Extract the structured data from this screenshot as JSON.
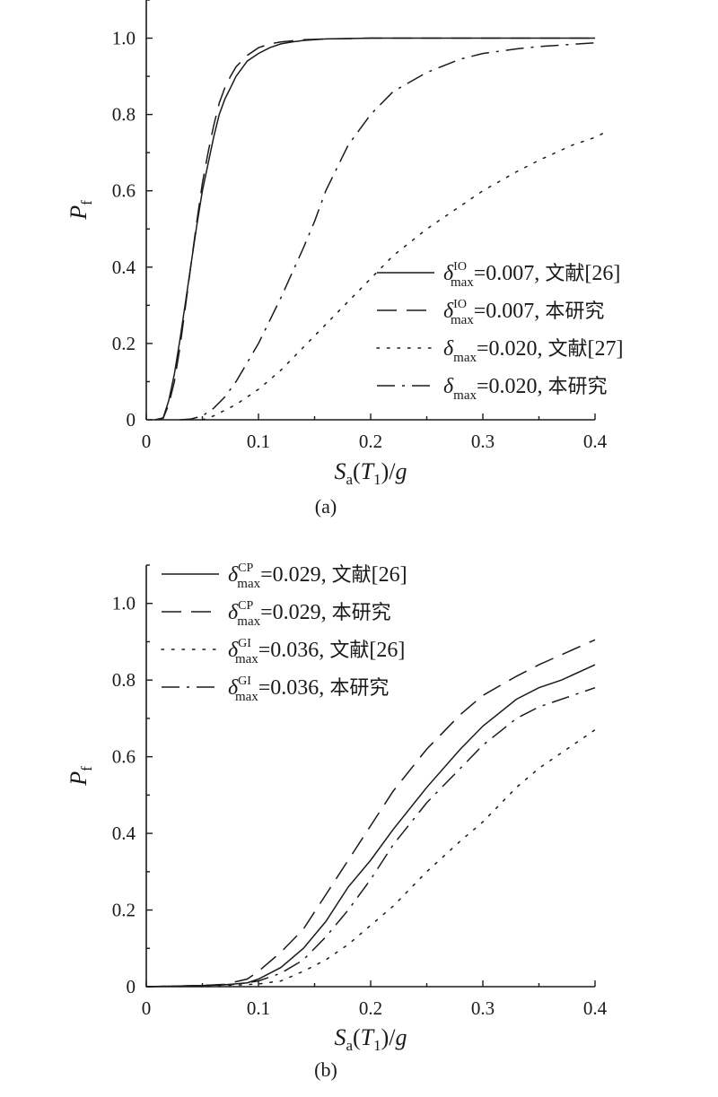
{
  "chart_data": [
    {
      "panel_label": "(a)",
      "type": "line",
      "xlabel": {
        "main": "S",
        "sub": "a",
        "paren_open": "(",
        "var": "T",
        "var_sub": "1",
        "rest": ")/",
        "tail": "g"
      },
      "ylabel": {
        "main": "P",
        "sub": "f"
      },
      "xlim": [
        0,
        0.4
      ],
      "ylim": [
        0,
        1.1
      ],
      "xticks": [
        "0",
        "0.1",
        "0.2",
        "0.3",
        "0.4"
      ],
      "yticks": [
        "0",
        "0.2",
        "0.4",
        "0.6",
        "0.8",
        "1.0"
      ],
      "legend_position": "lower-right",
      "series": [
        {
          "legend": {
            "sym": "δ",
            "sub": "max",
            "sup": "IO",
            "rest": "=0.007, ",
            "cjk": "文献",
            "ref": "[26]"
          },
          "style": "solid",
          "x": [
            0.008,
            0.015,
            0.02,
            0.025,
            0.03,
            0.035,
            0.04,
            0.045,
            0.05,
            0.055,
            0.06,
            0.065,
            0.07,
            0.075,
            0.08,
            0.09,
            0.1,
            0.11,
            0.12,
            0.13,
            0.14,
            0.15,
            0.16,
            0.18,
            0.2,
            0.25,
            0.3,
            0.35,
            0.4
          ],
          "y": [
            0.0,
            0.005,
            0.05,
            0.12,
            0.21,
            0.31,
            0.41,
            0.51,
            0.6,
            0.67,
            0.74,
            0.8,
            0.84,
            0.87,
            0.9,
            0.94,
            0.96,
            0.975,
            0.985,
            0.99,
            0.994,
            0.996,
            0.998,
            0.999,
            1.0,
            1.0,
            1.0,
            1.0,
            1.0
          ]
        },
        {
          "legend": {
            "sym": "δ",
            "sub": "max",
            "sup": "IO",
            "rest": "=0.007, ",
            "cjk": "本研究",
            "ref": ""
          },
          "style": "dashed",
          "x": [
            0.008,
            0.015,
            0.02,
            0.025,
            0.03,
            0.035,
            0.04,
            0.045,
            0.05,
            0.055,
            0.06,
            0.065,
            0.07,
            0.075,
            0.08,
            0.09,
            0.1,
            0.11,
            0.12,
            0.14,
            0.16,
            0.18,
            0.2,
            0.25,
            0.3,
            0.35,
            0.4
          ],
          "y": [
            0.0,
            0.004,
            0.04,
            0.1,
            0.19,
            0.3,
            0.41,
            0.52,
            0.62,
            0.7,
            0.77,
            0.83,
            0.87,
            0.9,
            0.925,
            0.955,
            0.975,
            0.985,
            0.99,
            0.996,
            0.998,
            0.999,
            1.0,
            1.0,
            1.0,
            1.0,
            1.0
          ]
        },
        {
          "legend": {
            "sym": "δ",
            "sub": "max",
            "sup": "",
            "rest": "=0.020, ",
            "cjk": "文献",
            "ref": "[27]"
          },
          "style": "dotted",
          "x": [
            0.05,
            0.06,
            0.08,
            0.1,
            0.12,
            0.15,
            0.18,
            0.2,
            0.22,
            0.25,
            0.28,
            0.3,
            0.33,
            0.35,
            0.38,
            0.4,
            0.41
          ],
          "y": [
            0.0,
            0.01,
            0.04,
            0.08,
            0.13,
            0.22,
            0.31,
            0.37,
            0.43,
            0.5,
            0.56,
            0.6,
            0.65,
            0.68,
            0.72,
            0.74,
            0.755
          ]
        },
        {
          "legend": {
            "sym": "δ",
            "sub": "max",
            "sup": "",
            "rest": "=0.020, ",
            "cjk": "本研究",
            "ref": ""
          },
          "style": "dashdot",
          "x": [
            0.03,
            0.04,
            0.05,
            0.06,
            0.07,
            0.08,
            0.1,
            0.12,
            0.14,
            0.15,
            0.16,
            0.18,
            0.2,
            0.22,
            0.25,
            0.28,
            0.3,
            0.33,
            0.35,
            0.38,
            0.4
          ],
          "y": [
            0.0,
            0.002,
            0.01,
            0.03,
            0.06,
            0.1,
            0.2,
            0.32,
            0.45,
            0.52,
            0.6,
            0.72,
            0.8,
            0.86,
            0.91,
            0.945,
            0.96,
            0.972,
            0.978,
            0.984,
            0.988
          ]
        }
      ]
    },
    {
      "panel_label": "(b)",
      "type": "line",
      "xlabel": {
        "main": "S",
        "sub": "a",
        "paren_open": "(",
        "var": "T",
        "var_sub": "1",
        "rest": ")/",
        "tail": "g"
      },
      "ylabel": {
        "main": "P",
        "sub": "f"
      },
      "xlim": [
        0,
        0.4
      ],
      "ylim": [
        0,
        1.1
      ],
      "xticks": [
        "0",
        "0.1",
        "0.2",
        "0.3",
        "0.4"
      ],
      "yticks": [
        "0",
        "0.2",
        "0.4",
        "0.6",
        "0.8",
        "1.0"
      ],
      "legend_position": "upper-left",
      "series": [
        {
          "legend": {
            "sym": "δ",
            "sub": "max",
            "sup": "CP",
            "rest": "=0.029, ",
            "cjk": "文献",
            "ref": "[26]"
          },
          "style": "solid",
          "x": [
            0.0,
            0.05,
            0.07,
            0.09,
            0.1,
            0.12,
            0.14,
            0.16,
            0.18,
            0.2,
            0.22,
            0.25,
            0.28,
            0.3,
            0.33,
            0.35,
            0.37,
            0.4
          ],
          "y": [
            0.0,
            0.003,
            0.005,
            0.01,
            0.02,
            0.05,
            0.1,
            0.17,
            0.26,
            0.33,
            0.41,
            0.52,
            0.62,
            0.68,
            0.75,
            0.78,
            0.8,
            0.84
          ]
        },
        {
          "legend": {
            "sym": "δ",
            "sub": "max",
            "sup": "CP",
            "rest": "=0.029, ",
            "cjk": "本研究",
            "ref": ""
          },
          "style": "dashed",
          "x": [
            0.0,
            0.05,
            0.07,
            0.09,
            0.1,
            0.12,
            0.14,
            0.16,
            0.18,
            0.2,
            0.22,
            0.25,
            0.28,
            0.3,
            0.33,
            0.35,
            0.4
          ],
          "y": [
            0.0,
            0.003,
            0.006,
            0.02,
            0.04,
            0.09,
            0.15,
            0.24,
            0.33,
            0.42,
            0.51,
            0.62,
            0.71,
            0.76,
            0.81,
            0.84,
            0.905
          ]
        },
        {
          "legend": {
            "sym": "δ",
            "sub": "max",
            "sup": "GI",
            "rest": "=0.036, ",
            "cjk": "文献",
            "ref": "[26]"
          },
          "style": "dotted",
          "x": [
            0.0,
            0.05,
            0.08,
            0.1,
            0.12,
            0.14,
            0.16,
            0.18,
            0.2,
            0.22,
            0.25,
            0.28,
            0.3,
            0.33,
            0.35,
            0.38,
            0.4
          ],
          "y": [
            0.0,
            0.002,
            0.004,
            0.007,
            0.015,
            0.04,
            0.07,
            0.11,
            0.16,
            0.21,
            0.3,
            0.38,
            0.43,
            0.52,
            0.57,
            0.63,
            0.67
          ]
        },
        {
          "legend": {
            "sym": "δ",
            "sub": "max",
            "sup": "GI",
            "rest": "=0.036, ",
            "cjk": "本研究",
            "ref": ""
          },
          "style": "dashdot",
          "x": [
            0.0,
            0.05,
            0.08,
            0.1,
            0.12,
            0.14,
            0.16,
            0.18,
            0.2,
            0.22,
            0.25,
            0.28,
            0.3,
            0.33,
            0.35,
            0.38,
            0.4
          ],
          "y": [
            0.0,
            0.003,
            0.006,
            0.015,
            0.035,
            0.07,
            0.13,
            0.2,
            0.28,
            0.37,
            0.48,
            0.57,
            0.63,
            0.7,
            0.73,
            0.76,
            0.78
          ]
        }
      ]
    }
  ]
}
